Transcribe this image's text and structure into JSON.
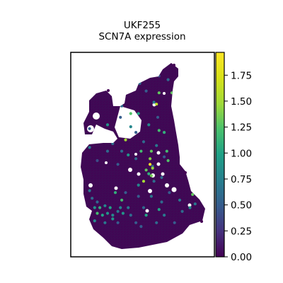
{
  "chart_data": {
    "type": "scatter",
    "title": "UKF255",
    "subtitle": "SCN7A expression",
    "xlabel": "",
    "ylabel": "",
    "grid": false,
    "colormap": "viridis",
    "colorbar": {
      "min": 0.0,
      "max": 1.97,
      "ticks": [
        0.0,
        0.25,
        0.5,
        0.75,
        1.0,
        1.25,
        1.5,
        1.75
      ],
      "tick_labels": [
        "0.00",
        "0.25",
        "0.50",
        "0.75",
        "1.00",
        "1.25",
        "1.50",
        "1.75"
      ]
    },
    "background_color": "#440154",
    "highlights": [
      {
        "x": 8,
        "y": 95,
        "value": 0.5
      },
      {
        "x": 12,
        "y": 93,
        "value": 0.8
      },
      {
        "x": 22,
        "y": 89,
        "value": 1.0
      },
      {
        "x": 47,
        "y": 88,
        "value": 0.6
      },
      {
        "x": 62,
        "y": 92,
        "value": 0.4
      },
      {
        "x": 58,
        "y": 78,
        "value": 0.7
      },
      {
        "x": 74,
        "y": 82,
        "value": 0.9
      },
      {
        "x": 36,
        "y": 58,
        "value": 1.5
      },
      {
        "x": 33,
        "y": 52,
        "value": 0.6
      },
      {
        "x": 40,
        "y": 65,
        "value": 0.8
      },
      {
        "x": 32,
        "y": 70,
        "value": 0.5
      },
      {
        "x": 46,
        "y": 72,
        "value": 1.0
      },
      {
        "x": 44,
        "y": 48,
        "value": 0.6
      },
      {
        "x": 18,
        "y": 60,
        "value": 0.7
      },
      {
        "x": 22,
        "y": 66,
        "value": 0.9
      },
      {
        "x": 8,
        "y": 64,
        "value": 0.5
      },
      {
        "x": 26,
        "y": 56,
        "value": 0.6
      },
      {
        "x": 54,
        "y": 66,
        "value": 0.8
      },
      {
        "x": 60,
        "y": 55,
        "value": 0.7
      },
      {
        "x": 66,
        "y": 62,
        "value": 1.1
      },
      {
        "x": 66,
        "y": 49,
        "value": 0.5
      },
      {
        "x": 57,
        "y": 44,
        "value": 0.6
      },
      {
        "x": 14,
        "y": 47,
        "value": 0.4
      },
      {
        "x": 30,
        "y": 45,
        "value": 0.5
      },
      {
        "x": 22,
        "y": 52,
        "value": 0.6
      },
      {
        "x": 38,
        "y": 50,
        "value": 0.9
      },
      {
        "x": 8,
        "y": 54,
        "value": 0.7
      },
      {
        "x": 50,
        "y": 57,
        "value": 0.6
      },
      {
        "x": 44,
        "y": 62,
        "value": 0.5
      },
      {
        "x": 12,
        "y": 22,
        "value": 0.9
      },
      {
        "x": 16,
        "y": 22,
        "value": 1.1
      },
      {
        "x": 20,
        "y": 23,
        "value": 0.8
      },
      {
        "x": 24,
        "y": 22,
        "value": 1.0
      },
      {
        "x": 14,
        "y": 19,
        "value": 1.2
      },
      {
        "x": 18,
        "y": 18,
        "value": 1.0
      },
      {
        "x": 22,
        "y": 19,
        "value": 0.9
      },
      {
        "x": 26,
        "y": 18,
        "value": 0.8
      },
      {
        "x": 30,
        "y": 20,
        "value": 0.7
      },
      {
        "x": 32,
        "y": 22,
        "value": 0.8
      },
      {
        "x": 34,
        "y": 19,
        "value": 0.9
      },
      {
        "x": 12,
        "y": 15,
        "value": 0.8
      },
      {
        "x": 20,
        "y": 14,
        "value": 0.7
      },
      {
        "x": 26,
        "y": 16,
        "value": 0.9
      },
      {
        "x": 38,
        "y": 22,
        "value": 0.7
      },
      {
        "x": 10,
        "y": 27,
        "value": 0.6
      },
      {
        "x": 8,
        "y": 31,
        "value": 0.7
      },
      {
        "x": 14,
        "y": 25,
        "value": 0.6
      },
      {
        "x": 30,
        "y": 14,
        "value": 0.5
      },
      {
        "x": 40,
        "y": 18,
        "value": 0.6
      },
      {
        "x": 44,
        "y": 14,
        "value": 0.5
      },
      {
        "x": 50,
        "y": 22,
        "value": 0.6
      },
      {
        "x": 56,
        "y": 28,
        "value": 0.7
      },
      {
        "x": 60,
        "y": 14,
        "value": 0.6
      },
      {
        "x": 66,
        "y": 18,
        "value": 0.7
      },
      {
        "x": 74,
        "y": 14,
        "value": 0.5
      },
      {
        "x": 80,
        "y": 20,
        "value": 0.6
      },
      {
        "x": 86,
        "y": 22,
        "value": 0.8
      },
      {
        "x": 90,
        "y": 24,
        "value": 0.7
      },
      {
        "x": 48,
        "y": 12,
        "value": 0.5
      },
      {
        "x": 64,
        "y": 25,
        "value": 0.6
      },
      {
        "x": 70,
        "y": 30,
        "value": 0.5
      },
      {
        "x": 52,
        "y": 18,
        "value": 1.0
      },
      {
        "x": 58,
        "y": 36,
        "value": 0.6
      },
      {
        "x": 36,
        "y": 30,
        "value": 0.5
      },
      {
        "x": 64,
        "y": 38,
        "value": 0.6
      },
      {
        "x": 78,
        "y": 26,
        "value": 0.7
      },
      {
        "x": 40,
        "y": 88,
        "value": 0.5
      },
      {
        "x": 33,
        "y": 76,
        "value": 0.6
      },
      {
        "x": 52,
        "y": 84,
        "value": 0.5
      },
      {
        "x": 69,
        "y": 90,
        "value": 0.6
      },
      {
        "x": 61,
        "y": 70,
        "value": 0.5
      },
      {
        "x": 46,
        "y": 28,
        "value": 0.5
      },
      {
        "x": 46,
        "y": 34,
        "value": 0.8
      },
      {
        "x": 33,
        "y": 26,
        "value": 1.2
      },
      {
        "x": 28,
        "y": 30,
        "value": 1.1
      },
      {
        "x": 62,
        "y": 21,
        "value": 1.0
      },
      {
        "x": 60,
        "y": 77,
        "value": 1.6
      },
      {
        "x": 56,
        "y": 52,
        "value": 1.3
      },
      {
        "x": 55,
        "y": 48,
        "value": 1.4
      },
      {
        "x": 54,
        "y": 40,
        "value": 1.1
      },
      {
        "x": 52,
        "y": 42,
        "value": 1.3
      },
      {
        "x": 50,
        "y": 36,
        "value": 1.5
      },
      {
        "x": 56,
        "y": 39,
        "value": 1.35
      },
      {
        "x": 57,
        "y": 43,
        "value": 1.45
      },
      {
        "x": 68,
        "y": 52,
        "value": 1.2
      },
      {
        "x": 69,
        "y": 47,
        "value": 1.25
      },
      {
        "x": 62,
        "y": 63,
        "value": 1.2
      },
      {
        "x": 48,
        "y": 52,
        "value": 1.2
      },
      {
        "x": 40,
        "y": 72,
        "value": 1.25
      },
      {
        "x": 62,
        "y": 83,
        "value": 1.3
      },
      {
        "x": 72,
        "y": 83,
        "value": 1.3
      },
      {
        "x": 88,
        "y": 29,
        "value": 1.3
      },
      {
        "x": 55,
        "y": 45,
        "value": 1.97
      }
    ]
  }
}
